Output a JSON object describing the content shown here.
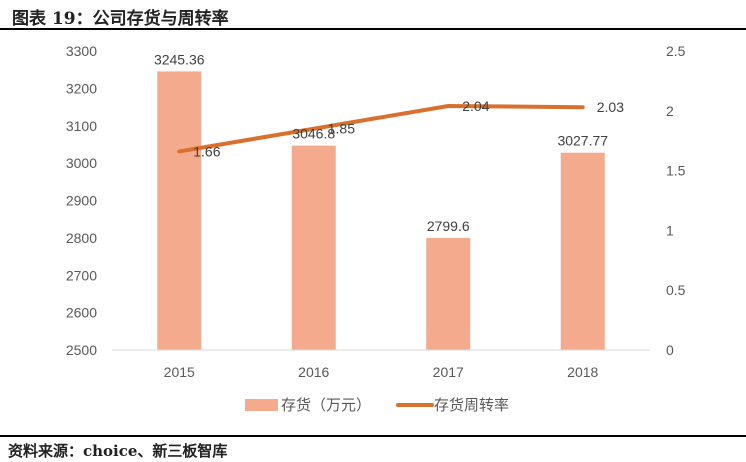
{
  "title": "图表 19：公司存货与周转率",
  "source": "资料来源：choice、新三板智库",
  "chart_data": {
    "type": "bar+line",
    "categories": [
      "2015",
      "2016",
      "2017",
      "2018"
    ],
    "series": [
      {
        "name": "存货（万元）",
        "type": "bar",
        "axis": "left",
        "values": [
          3245.36,
          3046.8,
          2799.6,
          3027.77
        ],
        "color": "#f4aa8c"
      },
      {
        "name": "存货周转率",
        "type": "line",
        "axis": "right",
        "values": [
          1.66,
          1.85,
          2.04,
          2.03
        ],
        "color": "#d9702d"
      }
    ],
    "left_axis": {
      "min": 2500,
      "max": 3300,
      "ticks": [
        "2500",
        "2600",
        "2700",
        "2800",
        "2900",
        "3000",
        "3100",
        "3200",
        "3300"
      ]
    },
    "right_axis": {
      "min": 0,
      "max": 2.5,
      "ticks": [
        "0",
        "0.5",
        "1",
        "1.5",
        "2",
        "2.5"
      ]
    },
    "bar_labels": [
      "3245.36",
      "3046.8",
      "2799.6",
      "3027.77"
    ],
    "line_labels": [
      "1.66",
      "1.85",
      "2.04",
      "2.03"
    ],
    "grid": false,
    "legend": "bottom"
  }
}
